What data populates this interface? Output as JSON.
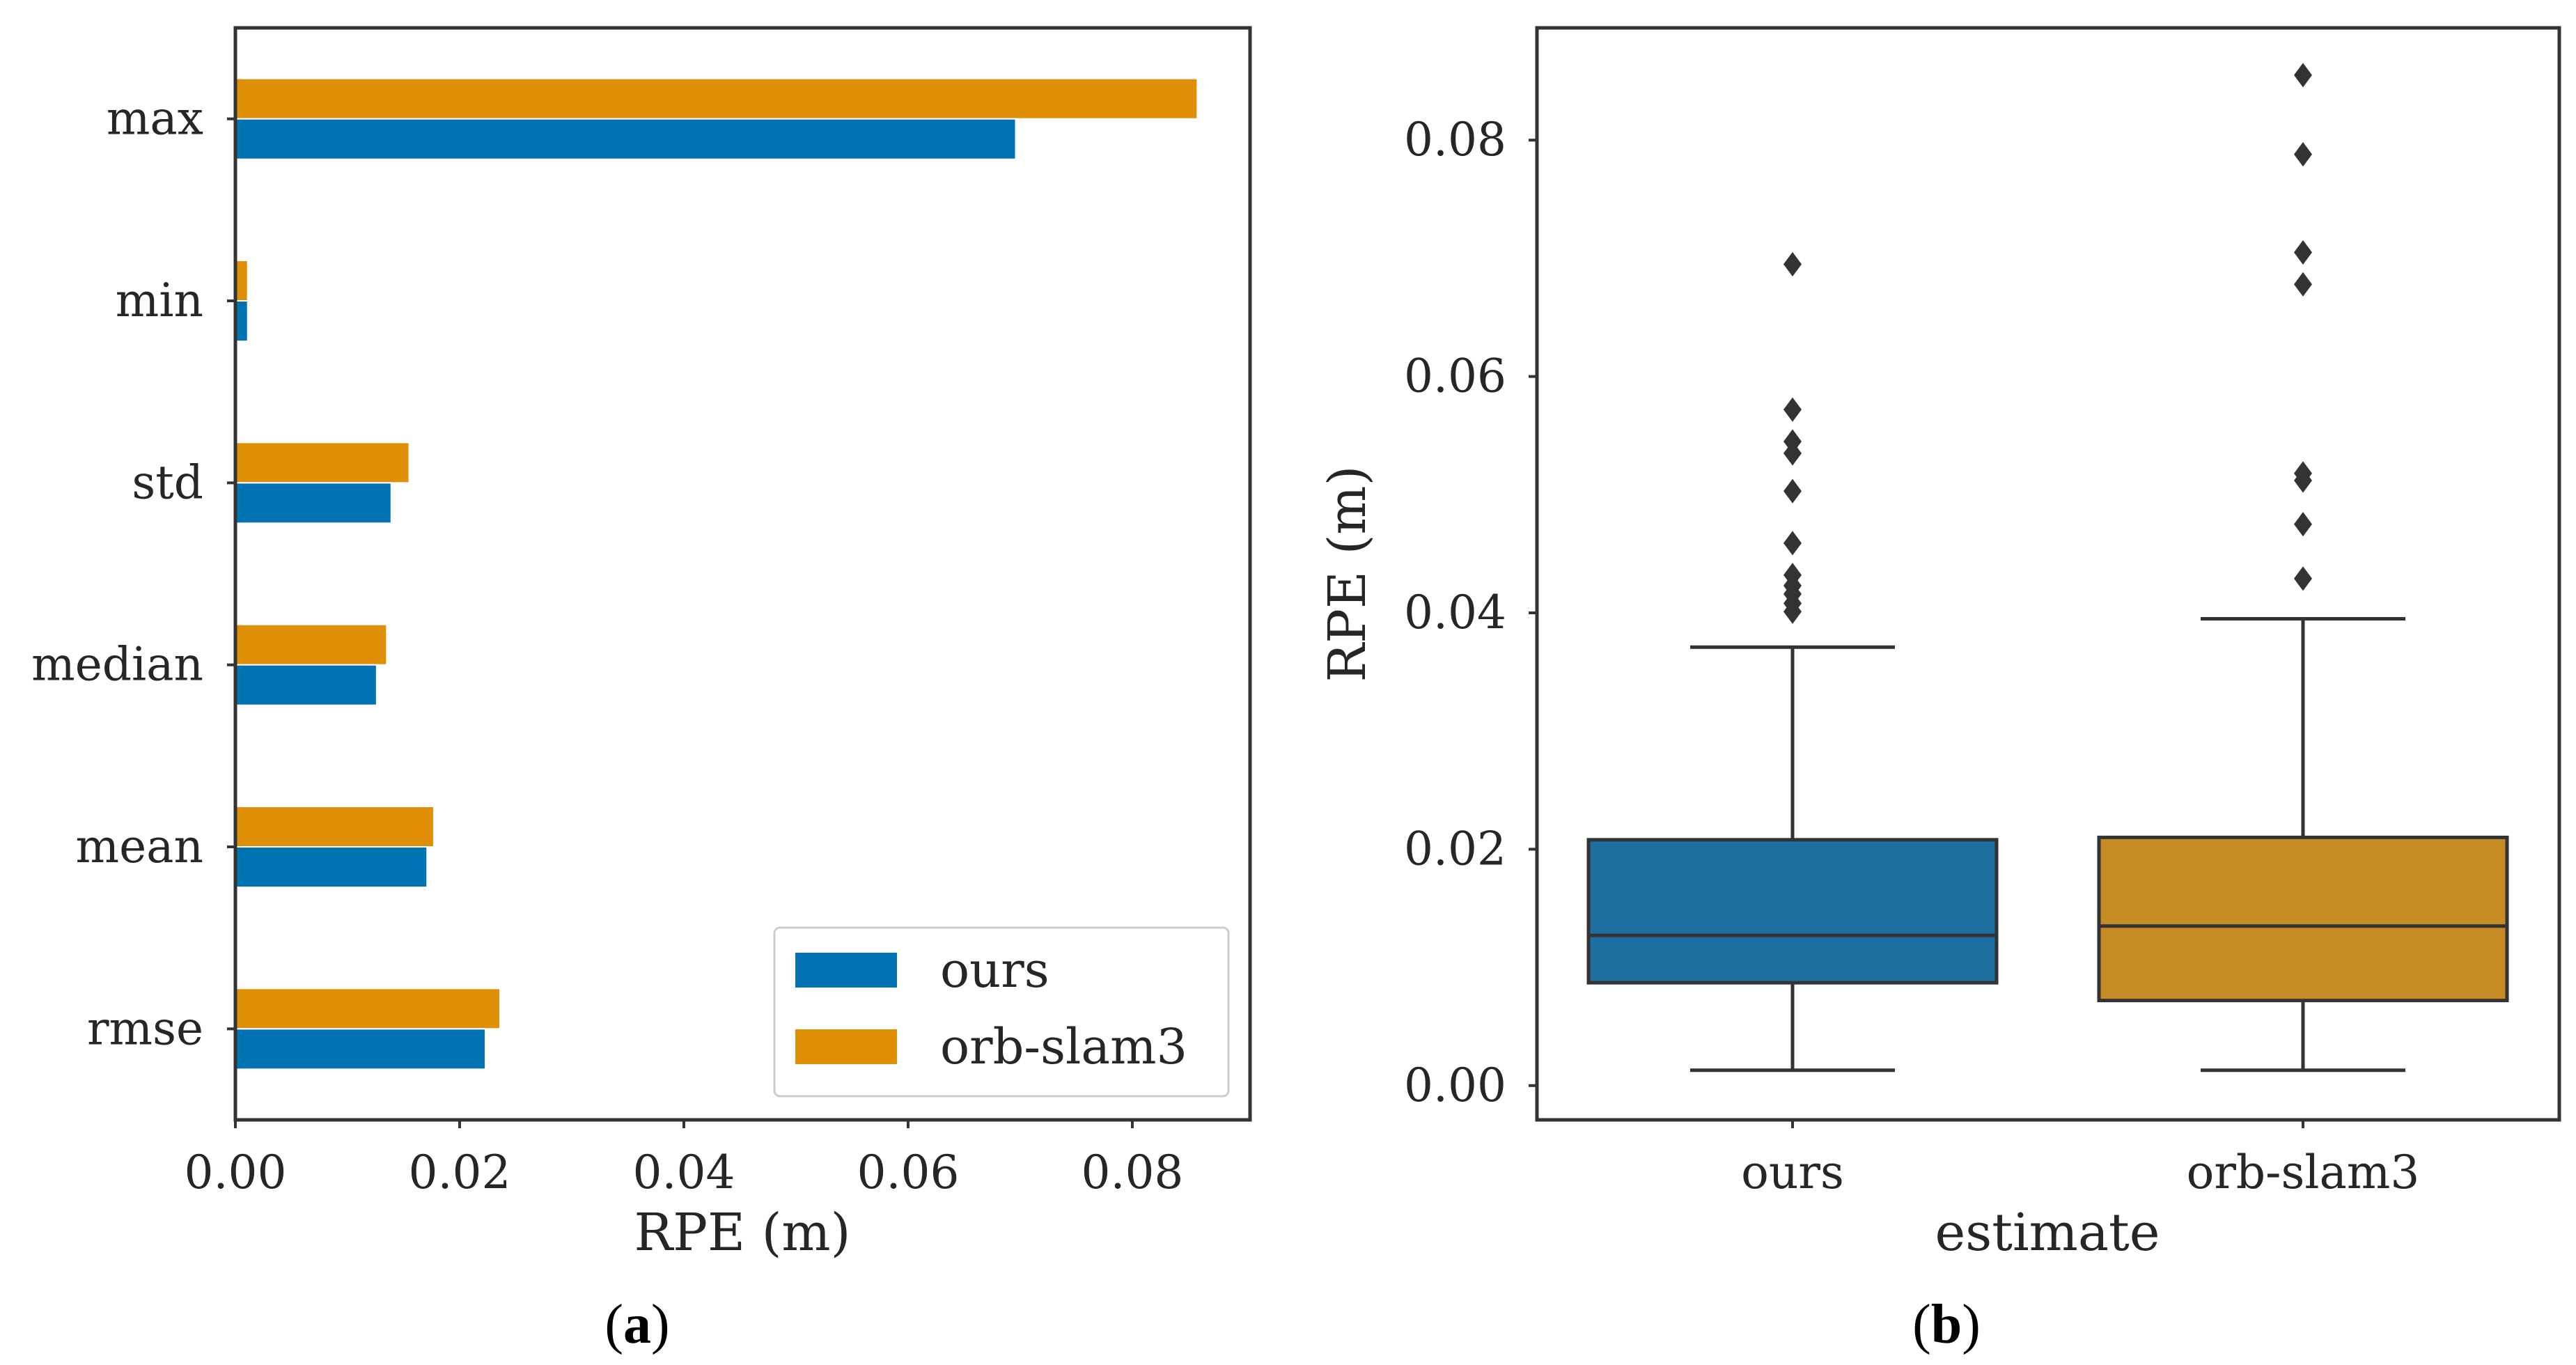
{
  "chart_data": [
    {
      "type": "bar",
      "orientation": "horizontal",
      "panel_label": {
        "open": "(",
        "letter": "a",
        "close": ")"
      },
      "categories": [
        "max",
        "min",
        "std",
        "median",
        "mean",
        "rmse"
      ],
      "series": [
        {
          "name": "orb-slam3",
          "values": [
            0.0858,
            0.0011,
            0.0155,
            0.0135,
            0.0177,
            0.0236
          ]
        },
        {
          "name": "ours",
          "values": [
            0.0696,
            0.0011,
            0.0139,
            0.0126,
            0.0171,
            0.0223
          ]
        }
      ],
      "xlabel": "RPE (m)",
      "ylabel": "",
      "xlim": [
        0,
        0.0905
      ],
      "xticks": [
        0,
        0.02,
        0.04,
        0.06,
        0.08
      ],
      "xtick_labels": [
        "0.00",
        "0.02",
        "0.04",
        "0.06",
        "0.08"
      ],
      "legend": {
        "placement": "lower-right",
        "entries": [
          "ours",
          "orb-slam3"
        ]
      },
      "grid": false
    },
    {
      "type": "box",
      "panel_label": {
        "open": "(",
        "letter": "b",
        "close": ")"
      },
      "categories": [
        "ours",
        "orb-slam3"
      ],
      "boxes": [
        {
          "name": "ours",
          "whisker_low": 0.0013,
          "q1": 0.0087,
          "median": 0.0127,
          "q3": 0.0208,
          "whisker_high": 0.0371,
          "outliers": [
            0.0695,
            0.0572,
            0.0545,
            0.0535,
            0.0503,
            0.0459,
            0.0432,
            0.0423,
            0.0416,
            0.0408,
            0.0401
          ]
        },
        {
          "name": "orb-slam3",
          "whisker_low": 0.0013,
          "q1": 0.0072,
          "median": 0.0135,
          "q3": 0.021,
          "whisker_high": 0.0395,
          "outliers": [
            0.0855,
            0.0788,
            0.0705,
            0.0678,
            0.0518,
            0.0512,
            0.0475,
            0.0429
          ]
        }
      ],
      "xlabel": "estimate",
      "ylabel": "RPE (m)",
      "ylim": [
        -0.0029,
        0.0895
      ],
      "yticks": [
        0,
        0.02,
        0.04,
        0.06,
        0.08
      ],
      "ytick_labels": [
        "0.00",
        "0.02",
        "0.04",
        "0.06",
        "0.08"
      ],
      "grid": false
    }
  ],
  "colors": {
    "ours_bar": "#0173b2",
    "orb_bar": "#de8f05",
    "ours_box": "#1a6fa0",
    "orb_box": "#c78b25",
    "axis": "#333333",
    "line": "#333333"
  }
}
